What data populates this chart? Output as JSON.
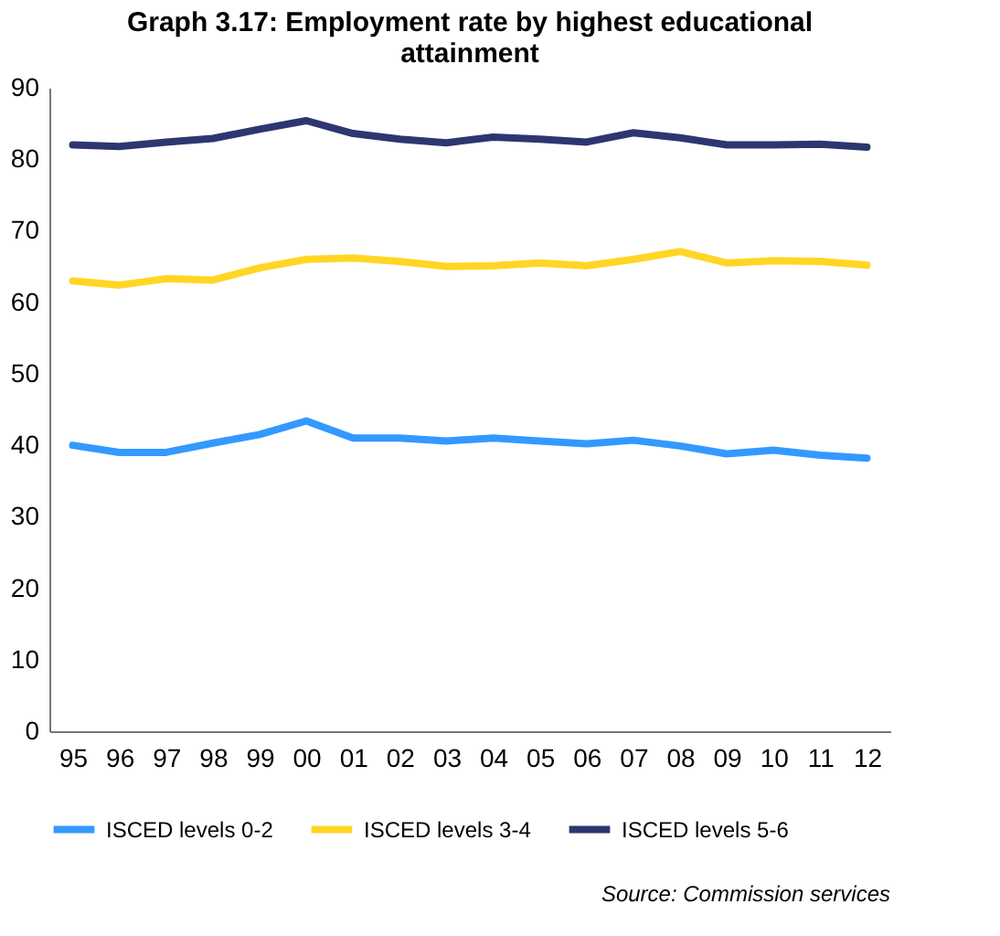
{
  "chart_data": {
    "type": "line",
    "title": "Graph 3.17: Employment rate by highest educational attainment",
    "categories": [
      "95",
      "96",
      "97",
      "98",
      "99",
      "00",
      "01",
      "02",
      "03",
      "04",
      "05",
      "06",
      "07",
      "08",
      "09",
      "10",
      "11",
      "12"
    ],
    "series": [
      {
        "name": "ISCED levels 0-2",
        "color": "#3399ff",
        "values": [
          40,
          39,
          39,
          40.3,
          41.5,
          43.4,
          41,
          41,
          40.6,
          41,
          40.6,
          40.2,
          40.7,
          39.9,
          38.8,
          39.3,
          38.6,
          38.2
        ]
      },
      {
        "name": "ISCED levels 3-4",
        "color": "#ffd624",
        "values": [
          63,
          62.4,
          63.3,
          63.1,
          64.8,
          66,
          66.2,
          65.7,
          65,
          65.1,
          65.5,
          65.1,
          66,
          67.1,
          65.5,
          65.8,
          65.7,
          65.2
        ]
      },
      {
        "name": "ISCED levels 5-6",
        "color": "#2e3670",
        "values": [
          82,
          81.8,
          82.4,
          82.9,
          84.2,
          85.4,
          83.6,
          82.8,
          82.3,
          83.1,
          82.8,
          82.4,
          83.7,
          83,
          82,
          82,
          82.1,
          81.7
        ]
      }
    ],
    "ylim": [
      0,
      90
    ],
    "yticks": [
      0,
      10,
      20,
      30,
      40,
      50,
      60,
      70,
      80,
      90
    ],
    "grid": false,
    "legend": "bottom",
    "line_style": "solid",
    "marker": "none",
    "annotations": [
      "Source: Commission services"
    ]
  }
}
